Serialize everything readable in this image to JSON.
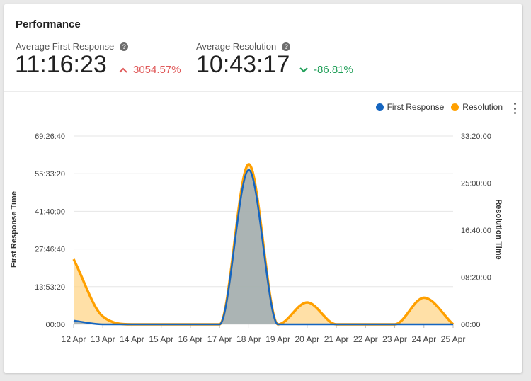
{
  "header": {
    "title": "Performance"
  },
  "metrics": {
    "first_response": {
      "label": "Average First Response",
      "value": "11:16:23",
      "delta": "3054.57%",
      "delta_direction": "up",
      "delta_color": "#e05a5a"
    },
    "resolution": {
      "label": "Average Resolution",
      "value": "10:43:17",
      "delta": "-86.81%",
      "delta_direction": "down",
      "delta_color": "#1e9e57"
    }
  },
  "icons": {
    "help": "help-circle-icon",
    "menu": "more-vertical-icon"
  },
  "chart_data": {
    "type": "area",
    "categories": [
      "12 Apr",
      "13 Apr",
      "14 Apr",
      "15 Apr",
      "16 Apr",
      "17 Apr",
      "18 Apr",
      "19 Apr",
      "20 Apr",
      "21 Apr",
      "22 Apr",
      "23 Apr",
      "24 Apr",
      "25 Apr"
    ],
    "legend_position": "top-right",
    "grid": true,
    "y_left": {
      "label": "First Response Time",
      "ticks": [
        "00:00",
        "13:53:20",
        "27:46:40",
        "41:40:00",
        "55:33:20",
        "69:26:40"
      ],
      "range_seconds": [
        0,
        250000
      ]
    },
    "y_right": {
      "label": "Resolution Time",
      "ticks": [
        "00:00",
        "08:20:00",
        "16:40:00",
        "25:00:00",
        "33:20:00"
      ],
      "range_seconds": [
        0,
        120000
      ]
    },
    "series": [
      {
        "name": "First Response",
        "axis": "left",
        "color": "#1565c0",
        "fill": "#8fa6b8",
        "values_seconds": [
          5000,
          0,
          0,
          0,
          0,
          0,
          205000,
          0,
          0,
          0,
          0,
          0,
          0,
          0
        ]
      },
      {
        "name": "Resolution",
        "axis": "right",
        "color": "#ffa000",
        "fill": "#ffd58a",
        "values_seconds": [
          41500,
          5000,
          0,
          0,
          0,
          0,
          102000,
          0,
          14000,
          0,
          0,
          0,
          17000,
          0
        ]
      }
    ]
  }
}
